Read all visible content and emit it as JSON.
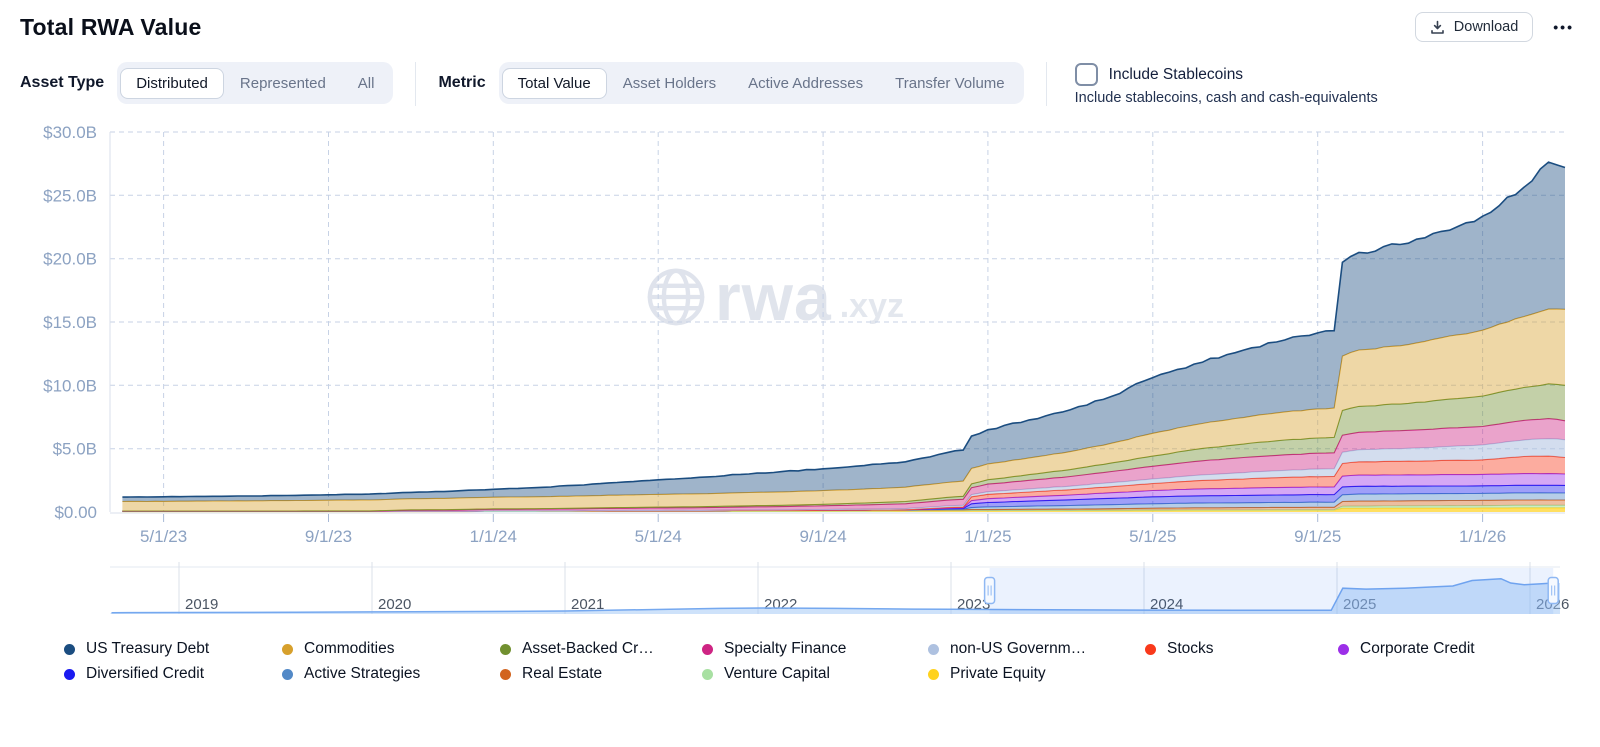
{
  "header": {
    "title": "Total RWA Value",
    "download_label": "Download",
    "more_label": "•••"
  },
  "controls": {
    "asset_type": {
      "label": "Asset Type",
      "options": [
        "Distributed",
        "Represented",
        "All"
      ],
      "selected": "Distributed"
    },
    "metric": {
      "label": "Metric",
      "options": [
        "Total Value",
        "Asset Holders",
        "Active Addresses",
        "Transfer Volume"
      ],
      "selected": "Total Value"
    },
    "stablecoins": {
      "label": "Include Stablecoins",
      "description": "Include stablecoins, cash and cash-equivalents",
      "checked": false
    }
  },
  "watermark": {
    "text": "rwa",
    "suffix": ".xyz"
  },
  "chart_data": {
    "type": "area-stacked",
    "title": "Total RWA Value",
    "unit": "USD billions",
    "ylim": [
      0,
      30
    ],
    "grid": true,
    "legend_position": "bottom",
    "x_axis": {
      "ticks": [
        {
          "label": "5/1/23",
          "month": 1
        },
        {
          "label": "9/1/23",
          "month": 5
        },
        {
          "label": "1/1/24",
          "month": 9
        },
        {
          "label": "5/1/24",
          "month": 13
        },
        {
          "label": "9/1/24",
          "month": 17
        },
        {
          "label": "1/1/25",
          "month": 21
        },
        {
          "label": "5/1/25",
          "month": 25
        },
        {
          "label": "9/1/25",
          "month": 29
        },
        {
          "label": "1/1/26",
          "month": 33
        }
      ]
    },
    "y_axis": {
      "ticks": [
        {
          "label": "$30.0B",
          "value": 30
        },
        {
          "label": "$25.0B",
          "value": 25
        },
        {
          "label": "$20.0B",
          "value": 20
        },
        {
          "label": "$15.0B",
          "value": 15
        },
        {
          "label": "$10.0B",
          "value": 10
        },
        {
          "label": "$5.0B",
          "value": 5
        },
        {
          "label": "$0.00",
          "value": 0
        }
      ]
    },
    "x_months": [
      0,
      1,
      2,
      3,
      4,
      5,
      6,
      7,
      8,
      9,
      10,
      11,
      12,
      13,
      14,
      15,
      16,
      17,
      18,
      19,
      20,
      20.4,
      20.6,
      21,
      22,
      23,
      24,
      25,
      26,
      27,
      28,
      29,
      29.4,
      29.6,
      30,
      31,
      32,
      33,
      34,
      34.6,
      35
    ],
    "series": [
      {
        "name": "US Treasury Debt",
        "color": "#1B4D80",
        "values": [
          0.35,
          0.36,
          0.37,
          0.38,
          0.4,
          0.43,
          0.46,
          0.5,
          0.55,
          0.62,
          0.72,
          0.85,
          1.0,
          1.15,
          1.3,
          1.45,
          1.6,
          1.72,
          1.85,
          2.0,
          2.35,
          2.45,
          2.55,
          2.7,
          3.0,
          3.3,
          3.7,
          4.4,
          4.8,
          5.2,
          5.6,
          6.0,
          6.1,
          7.4,
          7.7,
          8.0,
          8.4,
          9.0,
          10.2,
          11.6,
          11.2
        ]
      },
      {
        "name": "Commodities",
        "color": "#D7A02C",
        "values": [
          0.75,
          0.76,
          0.78,
          0.8,
          0.82,
          0.84,
          0.86,
          0.88,
          0.9,
          0.92,
          0.94,
          0.96,
          0.98,
          1.0,
          1.02,
          1.04,
          1.06,
          1.08,
          1.1,
          1.13,
          1.18,
          1.2,
          1.22,
          1.25,
          1.32,
          1.42,
          1.55,
          1.8,
          1.95,
          2.08,
          2.2,
          2.3,
          2.32,
          4.3,
          4.45,
          4.6,
          4.9,
          5.2,
          5.6,
          5.9,
          6.0
        ]
      },
      {
        "name": "Asset-Backed Cr…",
        "color": "#71902F",
        "values": [
          0.02,
          0.02,
          0.02,
          0.02,
          0.02,
          0.03,
          0.03,
          0.03,
          0.03,
          0.04,
          0.04,
          0.05,
          0.06,
          0.07,
          0.08,
          0.09,
          0.1,
          0.12,
          0.15,
          0.18,
          0.22,
          0.24,
          0.3,
          0.35,
          0.45,
          0.55,
          0.68,
          0.8,
          0.95,
          1.05,
          1.15,
          1.2,
          1.22,
          1.95,
          2.05,
          2.1,
          2.25,
          2.4,
          2.6,
          2.75,
          2.8
        ]
      },
      {
        "name": "Specialty Finance",
        "color": "#CE2483",
        "values": [
          0,
          0,
          0,
          0,
          0,
          0,
          0,
          0.08,
          0.1,
          0.12,
          0.13,
          0.15,
          0.17,
          0.19,
          0.21,
          0.23,
          0.26,
          0.29,
          0.33,
          0.38,
          0.45,
          0.47,
          0.55,
          0.6,
          0.68,
          0.76,
          0.88,
          1.0,
          1.1,
          1.18,
          1.22,
          1.25,
          1.26,
          1.35,
          1.38,
          1.42,
          1.45,
          1.45,
          1.55,
          1.58,
          1.5
        ]
      },
      {
        "name": "non-US Governm…",
        "color": "#AEC1E0",
        "values": [
          0,
          0,
          0,
          0,
          0,
          0,
          0,
          0,
          0,
          0.01,
          0.01,
          0.02,
          0.02,
          0.03,
          0.03,
          0.04,
          0.05,
          0.06,
          0.08,
          0.1,
          0.13,
          0.14,
          0.17,
          0.2,
          0.24,
          0.28,
          0.32,
          0.36,
          0.42,
          0.48,
          0.54,
          0.6,
          0.61,
          0.88,
          0.95,
          1.0,
          1.08,
          1.18,
          1.3,
          1.38,
          1.4
        ]
      },
      {
        "name": "Stocks",
        "color": "#F9391B",
        "values": [
          0,
          0,
          0,
          0,
          0,
          0,
          0,
          0,
          0,
          0,
          0,
          0,
          0,
          0,
          0,
          0,
          0,
          0,
          0,
          0,
          0.05,
          0.06,
          0.3,
          0.35,
          0.38,
          0.42,
          0.48,
          0.55,
          0.65,
          0.72,
          0.78,
          0.82,
          0.83,
          1.0,
          1.05,
          1.08,
          1.12,
          1.15,
          1.35,
          1.38,
          1.3
        ]
      },
      {
        "name": "Corporate Credit",
        "color": "#9C2FE8",
        "values": [
          0,
          0,
          0,
          0,
          0,
          0,
          0,
          0,
          0,
          0,
          0,
          0,
          0,
          0,
          0,
          0,
          0,
          0,
          0,
          0,
          0.04,
          0.05,
          0.25,
          0.3,
          0.34,
          0.38,
          0.44,
          0.5,
          0.54,
          0.57,
          0.59,
          0.6,
          0.6,
          0.85,
          0.88,
          0.88,
          0.9,
          0.9,
          0.92,
          0.92,
          0.9
        ]
      },
      {
        "name": "Diversified Credit",
        "color": "#1A1AF0",
        "values": [
          0,
          0,
          0,
          0,
          0,
          0,
          0,
          0,
          0,
          0,
          0,
          0,
          0,
          0,
          0,
          0,
          0,
          0,
          0,
          0,
          0.05,
          0.06,
          0.3,
          0.35,
          0.4,
          0.45,
          0.5,
          0.55,
          0.57,
          0.58,
          0.59,
          0.6,
          0.6,
          0.62,
          0.62,
          0.61,
          0.6,
          0.6,
          0.6,
          0.6,
          0.6
        ]
      },
      {
        "name": "Active Strategies",
        "color": "#5289C7",
        "values": [
          0,
          0,
          0,
          0,
          0,
          0,
          0,
          0,
          0,
          0,
          0,
          0,
          0,
          0,
          0,
          0,
          0,
          0,
          0,
          0,
          0.03,
          0.04,
          0.15,
          0.2,
          0.24,
          0.28,
          0.32,
          0.35,
          0.37,
          0.38,
          0.39,
          0.4,
          0.4,
          0.53,
          0.55,
          0.55,
          0.55,
          0.55,
          0.56,
          0.56,
          0.55
        ]
      },
      {
        "name": "Real Estate",
        "color": "#D2641F",
        "values": [
          0.02,
          0.02,
          0.02,
          0.02,
          0.02,
          0.02,
          0.02,
          0.02,
          0.02,
          0.03,
          0.03,
          0.03,
          0.04,
          0.04,
          0.04,
          0.05,
          0.05,
          0.06,
          0.06,
          0.07,
          0.07,
          0.07,
          0.08,
          0.08,
          0.09,
          0.1,
          0.12,
          0.15,
          0.17,
          0.18,
          0.19,
          0.2,
          0.2,
          0.38,
          0.4,
          0.4,
          0.41,
          0.42,
          0.42,
          0.42,
          0.42
        ]
      },
      {
        "name": "Venture Capital",
        "color": "#A8E0A2",
        "values": [
          0.01,
          0.01,
          0.01,
          0.01,
          0.01,
          0.01,
          0.01,
          0.01,
          0.01,
          0.01,
          0.01,
          0.01,
          0.01,
          0.01,
          0.01,
          0.01,
          0.01,
          0.01,
          0.01,
          0.01,
          0.01,
          0.01,
          0.01,
          0.01,
          0.01,
          0.01,
          0.01,
          0.02,
          0.02,
          0.02,
          0.02,
          0.02,
          0.02,
          0.15,
          0.16,
          0.17,
          0.18,
          0.18,
          0.2,
          0.2,
          0.2
        ]
      },
      {
        "name": "Private Equity",
        "color": "#FFD21E",
        "values": [
          0.03,
          0.03,
          0.03,
          0.03,
          0.03,
          0.03,
          0.03,
          0.03,
          0.03,
          0.04,
          0.04,
          0.04,
          0.05,
          0.05,
          0.05,
          0.06,
          0.06,
          0.07,
          0.08,
          0.09,
          0.1,
          0.1,
          0.11,
          0.11,
          0.12,
          0.12,
          0.13,
          0.13,
          0.14,
          0.14,
          0.15,
          0.15,
          0.15,
          0.3,
          0.3,
          0.31,
          0.31,
          0.32,
          0.33,
          0.33,
          0.33
        ]
      }
    ]
  },
  "brush": {
    "year_labels": [
      "2019",
      "2020",
      "2021",
      "2022",
      "2023",
      "2024",
      "2025",
      "2026"
    ],
    "selection": {
      "start_year": 2023.2,
      "end_year": 2026.12
    },
    "series": [
      [
        2018.65,
        0.03
      ],
      [
        2019,
        0.035
      ],
      [
        2019.6,
        0.04
      ],
      [
        2020,
        0.05
      ],
      [
        2020.7,
        0.06
      ],
      [
        2021,
        0.07
      ],
      [
        2021.4,
        0.1
      ],
      [
        2021.8,
        0.13
      ],
      [
        2022.05,
        0.14
      ],
      [
        2022.4,
        0.13
      ],
      [
        2022.8,
        0.115
      ],
      [
        2023,
        0.11
      ],
      [
        2023.5,
        0.1
      ],
      [
        2024,
        0.09
      ],
      [
        2024.5,
        0.085
      ],
      [
        2024.97,
        0.085
      ],
      [
        2025.03,
        0.6
      ],
      [
        2025.15,
        0.58
      ],
      [
        2025.35,
        0.6
      ],
      [
        2025.5,
        0.63
      ],
      [
        2025.6,
        0.65
      ],
      [
        2025.7,
        0.78
      ],
      [
        2025.85,
        0.82
      ],
      [
        2025.9,
        0.72
      ],
      [
        2025.97,
        0.68
      ],
      [
        2026.05,
        0.7
      ],
      [
        2026.12,
        0.72
      ]
    ]
  },
  "legend": {
    "items": [
      {
        "label": "US Treasury Debt",
        "color": "#1B4D80"
      },
      {
        "label": "Commodities",
        "color": "#D7A02C"
      },
      {
        "label": "Asset-Backed Cr…",
        "color": "#71902F"
      },
      {
        "label": "Specialty Finance",
        "color": "#CE2483"
      },
      {
        "label": "non-US Governm…",
        "color": "#AEC1E0"
      },
      {
        "label": "Stocks",
        "color": "#F9391B"
      },
      {
        "label": "Corporate Credit",
        "color": "#9C2FE8"
      },
      {
        "label": "Diversified Credit",
        "color": "#1A1AF0"
      },
      {
        "label": "Active Strategies",
        "color": "#5289C7"
      },
      {
        "label": "Real Estate",
        "color": "#D2641F"
      },
      {
        "label": "Venture Capital",
        "color": "#A8E0A2"
      },
      {
        "label": "Private Equity",
        "color": "#FFD21E"
      }
    ]
  }
}
